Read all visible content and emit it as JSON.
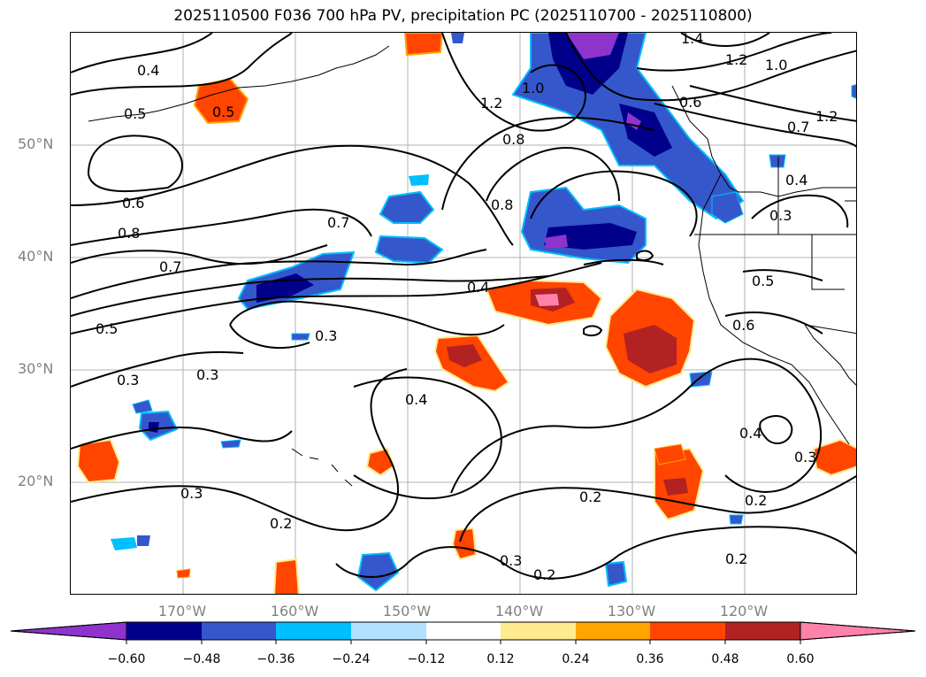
{
  "title": "2025110500 F036 700 hPa PV, precipitation PC (2025110700 - 2025110800)",
  "axes": {
    "lat_labels": [
      "50°N",
      "40°N",
      "30°N",
      "20°N"
    ],
    "lon_labels": [
      "170°W",
      "160°W",
      "150°W",
      "140°W",
      "130°W",
      "120°W"
    ]
  },
  "contour_labels": [
    "0.4",
    "0.5",
    "0.5",
    "0.6",
    "0.8",
    "0.7",
    "0.5",
    "0.3",
    "0.3",
    "0.7",
    "0.3",
    "0.4",
    "0.8",
    "1.2",
    "1.0",
    "0.8",
    "1.4",
    "1.2",
    "1.0",
    "0.6",
    "0.7",
    "1.2",
    "0.4",
    "0.3",
    "0.5",
    "0.6",
    "0.4",
    "0.4",
    "0.3",
    "0.2",
    "0.2",
    "0.3",
    "0.2",
    "0.2",
    "0.3",
    "0.2"
  ],
  "colorbar": {
    "ticks": [
      "−0.60",
      "−0.48",
      "−0.36",
      "−0.24",
      "−0.12",
      "0.12",
      "0.24",
      "0.36",
      "0.48",
      "0.60"
    ],
    "colors": [
      "#8e33cc",
      "#00008b",
      "#3557cc",
      "#00bfff",
      "#b0e2ff",
      "#ffffff",
      "#ffea8f",
      "#ffa500",
      "#ff4500",
      "#b22222",
      "#ff82ab"
    ]
  },
  "colors": {
    "neg_strong": "#00008b",
    "neg_med": "#3557cc",
    "neg_light": "#00bfff",
    "neg_purple": "#8e33cc",
    "pos_light": "#ffea8f",
    "pos_med": "#ffa500",
    "pos_strong": "#ff4500",
    "pos_dark": "#b22222",
    "pos_pink": "#ff82ab"
  }
}
